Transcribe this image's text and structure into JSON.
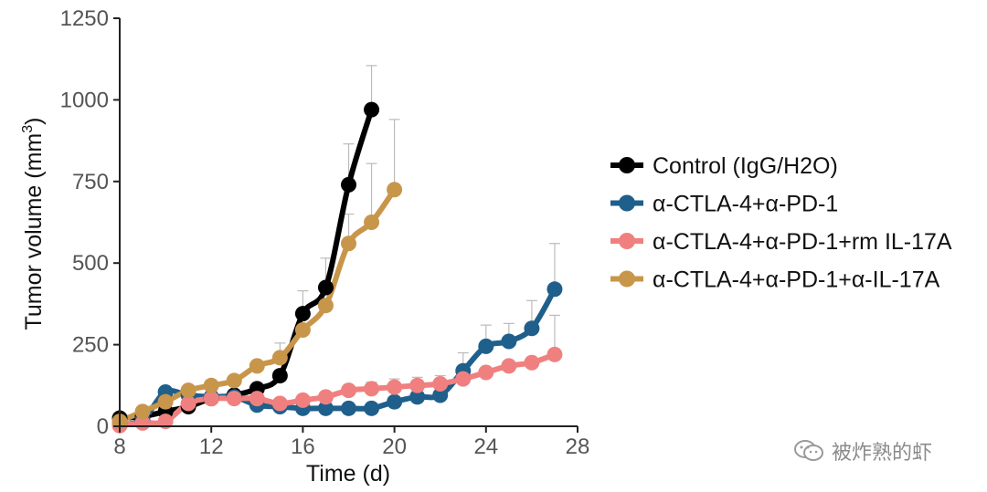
{
  "chart_data": {
    "type": "line",
    "title": "",
    "xlabel": "Time (d)",
    "ylabel_main": "Tumor volume (mm",
    "ylabel_sup": "3",
    "ylabel_close": ")",
    "xlim": [
      8,
      28
    ],
    "ylim": [
      0,
      1250
    ],
    "xticks": [
      8,
      12,
      16,
      20,
      24,
      28
    ],
    "yticks": [
      0,
      250,
      500,
      750,
      1000,
      1250
    ],
    "legend_position": "right",
    "series": [
      {
        "name": "Control (IgG/H2O)",
        "color": "#000000",
        "x": [
          8,
          9,
          10,
          11,
          12,
          13,
          14,
          15,
          16,
          17,
          18,
          19
        ],
        "y": [
          25,
          30,
          45,
          60,
          85,
          95,
          115,
          155,
          345,
          425,
          740,
          970
        ],
        "err": [
          0,
          0,
          0,
          0,
          0,
          0,
          0,
          0,
          70,
          90,
          125,
          135
        ]
      },
      {
        "name": "α-CTLA-4+α-PD-1",
        "color": "#1f5f8b",
        "x": [
          8,
          9,
          10,
          11,
          12,
          13,
          14,
          15,
          16,
          17,
          18,
          19,
          20,
          21,
          22,
          23,
          24,
          25,
          26,
          27
        ],
        "y": [
          5,
          20,
          105,
          95,
          90,
          90,
          65,
          60,
          55,
          55,
          55,
          55,
          75,
          90,
          95,
          170,
          245,
          260,
          300,
          420
        ],
        "err": [
          0,
          0,
          0,
          0,
          0,
          0,
          0,
          0,
          0,
          0,
          0,
          0,
          0,
          0,
          0,
          55,
          65,
          55,
          85,
          140
        ]
      },
      {
        "name": "α-CTLA-4+α-PD-1+rm IL-17A",
        "color": "#f08080",
        "x": [
          8,
          9,
          10,
          11,
          12,
          13,
          14,
          15,
          16,
          17,
          18,
          19,
          20,
          21,
          22,
          23,
          24,
          25,
          26,
          27
        ],
        "y": [
          2,
          10,
          15,
          70,
          85,
          85,
          85,
          70,
          80,
          90,
          110,
          115,
          120,
          125,
          130,
          145,
          165,
          185,
          195,
          220
        ],
        "err": [
          0,
          0,
          0,
          0,
          0,
          0,
          0,
          0,
          0,
          0,
          0,
          20,
          25,
          25,
          25,
          0,
          0,
          0,
          0,
          120
        ]
      },
      {
        "name": "α-CTLA-4+α-PD-1+α-IL-17A",
        "color": "#c8964b",
        "x": [
          8,
          9,
          10,
          11,
          12,
          13,
          14,
          15,
          16,
          17,
          18,
          19,
          20
        ],
        "y": [
          15,
          45,
          75,
          110,
          125,
          140,
          185,
          210,
          295,
          370,
          560,
          625,
          725
        ],
        "err": [
          0,
          0,
          0,
          0,
          0,
          0,
          0,
          45,
          0,
          0,
          90,
          180,
          215
        ]
      }
    ]
  },
  "watermark": {
    "text": "被炸熟的虾",
    "icon": "wechat-icon"
  }
}
